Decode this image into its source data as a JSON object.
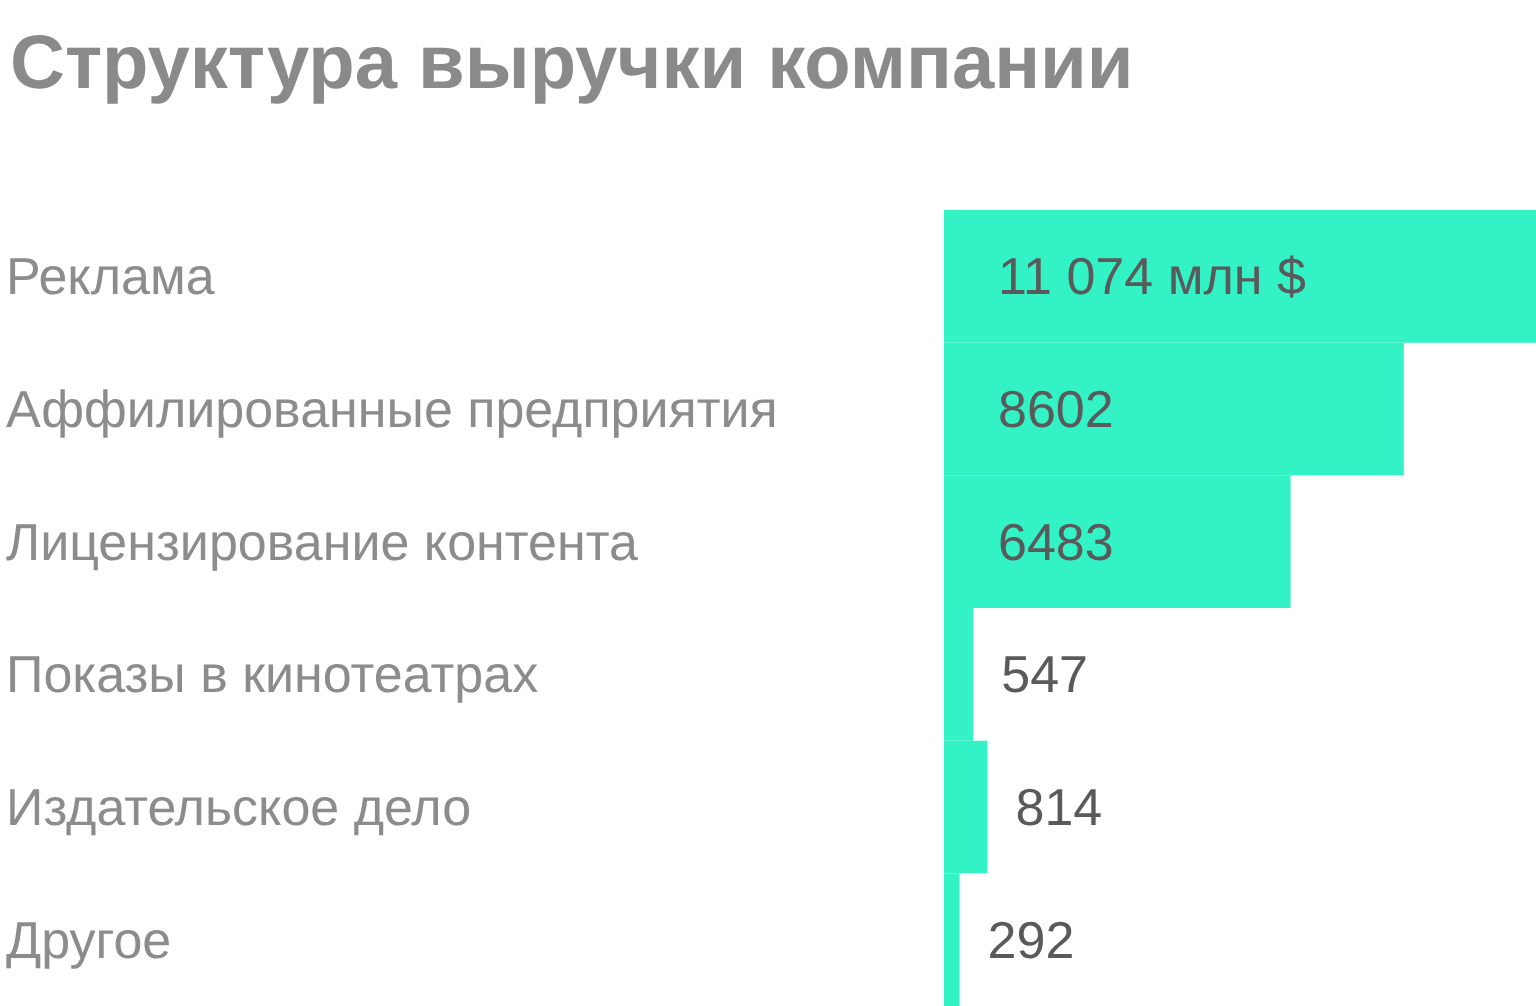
{
  "chart_data": {
    "type": "bar",
    "orientation": "horizontal",
    "title": "Структура выручки компании",
    "categories": [
      "Реклама",
      "Аффилированные предприятия",
      "Лицензирование контента",
      "Показы в кинотеатрах",
      "Издательское дело",
      "Другое"
    ],
    "values": [
      11074,
      8602,
      6483,
      547,
      814,
      292
    ],
    "value_labels": [
      "11 074 млн $",
      "8602",
      "6483",
      "547",
      "814",
      "292"
    ],
    "color": "#33f2c6"
  }
}
